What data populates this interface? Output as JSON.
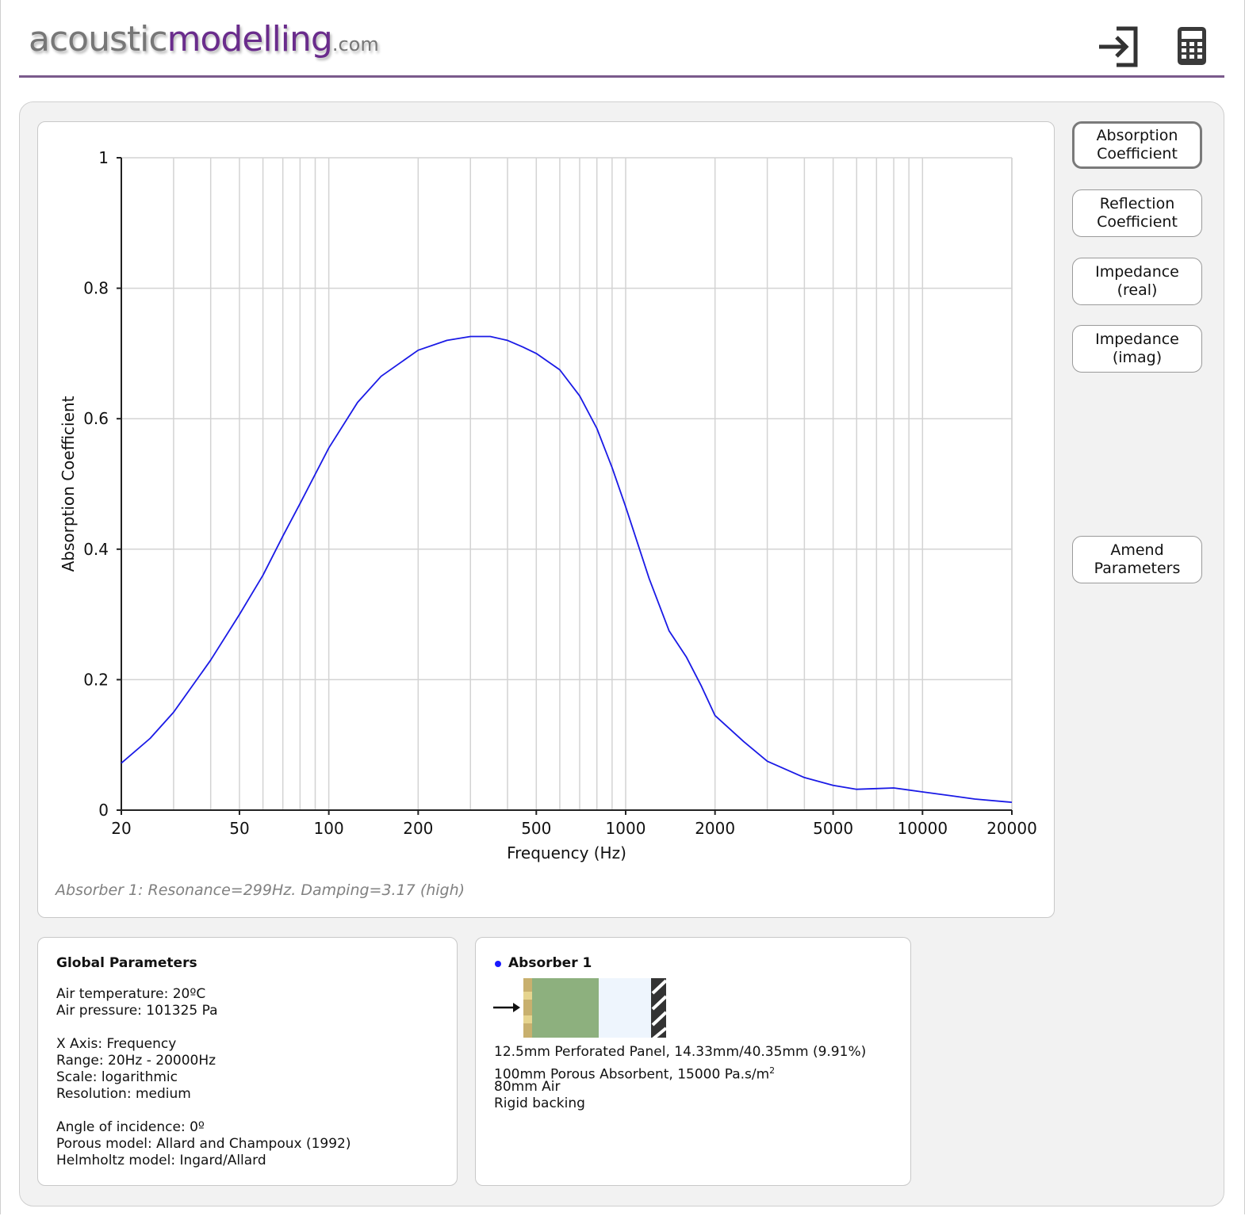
{
  "header": {
    "logo_part1": "acoustic",
    "logo_part2": "modelling",
    "logo_part3": ".com",
    "login_icon": "login-arrow-icon",
    "calculator_icon": "calculator-icon"
  },
  "side_buttons": [
    {
      "label": "Absorption\nCoefficient",
      "active": true
    },
    {
      "label": "Reflection\nCoefficient",
      "active": false
    },
    {
      "label": "Impedance\n(real)",
      "active": false
    },
    {
      "label": "Impedance\n(imag)",
      "active": false
    }
  ],
  "amend_button": "Amend\nParameters",
  "chart_note": "Absorber 1: Resonance=299Hz. Damping=3.17 (high)",
  "chart_data": {
    "type": "line",
    "xlabel": "Frequency (Hz)",
    "ylabel": "Absorption Coefficient",
    "x_scale": "log",
    "xlim": [
      20,
      20000
    ],
    "ylim": [
      0,
      1
    ],
    "x_ticks": [
      20,
      50,
      100,
      200,
      500,
      1000,
      2000,
      5000,
      10000,
      20000
    ],
    "x_tick_labels": [
      "20",
      "50",
      "100",
      "200",
      "500",
      "1000",
      "2000",
      "5000",
      "10000",
      "20000"
    ],
    "y_ticks": [
      0,
      0.2,
      0.4,
      0.6,
      0.8,
      1
    ],
    "y_tick_labels": [
      "0",
      "0.2",
      "0.4",
      "0.6",
      "0.8",
      "1"
    ],
    "grid": true,
    "line_color": "#1a1ae6",
    "series": [
      {
        "x": [
          20,
          25,
          30,
          40,
          50,
          60,
          70,
          80,
          100,
          125,
          150,
          200,
          250,
          300,
          350,
          400,
          450,
          500,
          600,
          700,
          800,
          900,
          1000,
          1200,
          1400,
          1600,
          1800,
          2000,
          2500,
          3000,
          4000,
          5000,
          6000,
          7000,
          8000,
          10000,
          12500,
          15000,
          20000
        ],
        "y": [
          0.072,
          0.11,
          0.15,
          0.23,
          0.3,
          0.36,
          0.42,
          0.47,
          0.555,
          0.625,
          0.665,
          0.705,
          0.72,
          0.726,
          0.726,
          0.72,
          0.71,
          0.7,
          0.675,
          0.635,
          0.585,
          0.525,
          0.465,
          0.355,
          0.275,
          0.235,
          0.19,
          0.145,
          0.105,
          0.075,
          0.05,
          0.038,
          0.032,
          0.033,
          0.034,
          0.028,
          0.022,
          0.017,
          0.012
        ]
      }
    ]
  },
  "global_params": {
    "title": "Global Parameters",
    "air_temp": "Air temperature: 20ºC",
    "air_pressure": "Air pressure: 101325 Pa",
    "x_axis": "X Axis: Frequency",
    "range": "Range: 20Hz - 20000Hz",
    "scale": "Scale: logarithmic",
    "resolution": "Resolution: medium",
    "angle": "Angle of incidence: 0º",
    "porous_model": "Porous model: Allard and Champoux (1992)",
    "helmholtz_model": "Helmholtz model: Ingard/Allard"
  },
  "absorber": {
    "title": "Absorber 1",
    "dot_color": "#1a1aff",
    "layer1": "12.5mm Perforated Panel, 14.33mm/40.35mm (9.91%)",
    "layer2_text": "100mm Porous Absorbent, 15000 Pa.s/m",
    "layer2_sup": "2",
    "layer3": "80mm Air",
    "layer4": "Rigid backing",
    "colors": {
      "panel": "#c8b06e",
      "porous": "#8db07e",
      "air": "#eef5fd",
      "rigid": "#333333"
    }
  }
}
